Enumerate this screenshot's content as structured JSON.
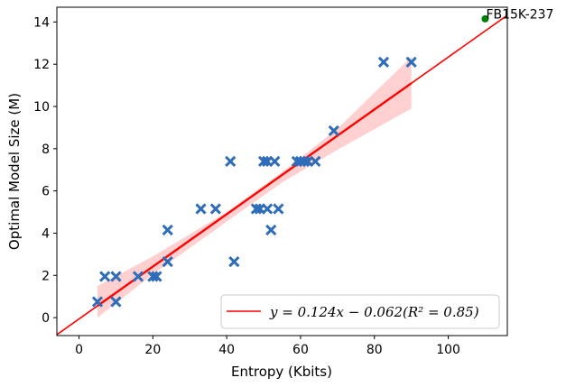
{
  "chart_data": {
    "type": "scatter",
    "xlabel": "Entropy (Kbits)",
    "ylabel": "Optimal Model Size (M)",
    "xlim": [
      -6,
      116
    ],
    "ylim": [
      -0.85,
      14.7
    ],
    "xticks": [
      "0",
      "20",
      "40",
      "60",
      "80",
      "100"
    ],
    "xtick_values": [
      0,
      20,
      40,
      60,
      80,
      100
    ],
    "yticks": [
      "0",
      "2",
      "4",
      "6",
      "8",
      "10",
      "12",
      "14"
    ],
    "ytick_values": [
      0,
      2,
      4,
      6,
      8,
      10,
      12,
      14
    ],
    "grid": false,
    "legend_position": "bottom-right",
    "legend_label": "y = 0.124x − 0.062(R² = 0.85)",
    "fit": {
      "slope": 0.124,
      "intercept": -0.062,
      "r2": 0.85,
      "color": "#ff0000"
    },
    "confidence_band": {
      "x": [
        5,
        20,
        40,
        55,
        70,
        90
      ],
      "lower": [
        0.0,
        2.05,
        4.55,
        6.4,
        7.95,
        9.9
      ],
      "upper": [
        1.5,
        2.9,
        5.0,
        6.9,
        8.95,
        12.35
      ],
      "color": "#ffc0c0"
    },
    "points": {
      "color": "#2f6db8",
      "marker": "x",
      "x": [
        5,
        7,
        10,
        10,
        16,
        20,
        21,
        24,
        24,
        33,
        37,
        41,
        42,
        48,
        49,
        50,
        51,
        51,
        52,
        53,
        54,
        59,
        60,
        61,
        62,
        64,
        69,
        82.5,
        90
      ],
      "y": [
        0.75,
        1.95,
        1.95,
        0.75,
        1.95,
        1.95,
        1.95,
        2.65,
        4.15,
        5.15,
        5.15,
        7.4,
        2.65,
        5.15,
        5.15,
        7.4,
        5.15,
        7.4,
        4.15,
        7.4,
        5.15,
        7.4,
        7.4,
        7.4,
        7.4,
        7.4,
        8.85,
        12.1,
        12.1
      ]
    },
    "highlight": {
      "label": "FB15K-237",
      "x": 110,
      "y": 14.15,
      "color": "#008000"
    }
  }
}
